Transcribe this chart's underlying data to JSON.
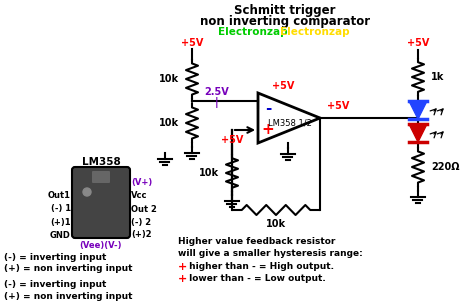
{
  "title_line1": "Schmitt trigger",
  "title_line2": "non inverting comparator",
  "brand1": "Electronzap",
  "brand2": "Electronzap",
  "brand1_color": "#00cc00",
  "brand2_color": "#ffdd00",
  "bg_color": "#ffffff",
  "text_color": "#000000",
  "red_color": "#ff0000",
  "blue_color": "#0000cc",
  "purple_color": "#7700bb",
  "supply_voltage": "+5V",
  "ic_label": "LM358 1/2",
  "voltage_25": "2.5V",
  "chip_label": "LM358",
  "chip_pins_left": [
    "Out1",
    "(-) 1",
    "(+)1",
    "GND"
  ],
  "chip_pins_right": [
    "(V+)",
    "Vcc",
    "Out 2",
    "(-) 2",
    "(+)2"
  ],
  "chip_bottom": "(Vee)(V-)",
  "legend1": "(-) = inverting input",
  "legend2": "(+) = non inverting input",
  "note1": "Higher value feedback resistor",
  "note2": "will give a smaller hysteresis range:",
  "out1_prefix": "+ higher than - = High output.",
  "out2_prefix": "+ lower than - = Low output."
}
